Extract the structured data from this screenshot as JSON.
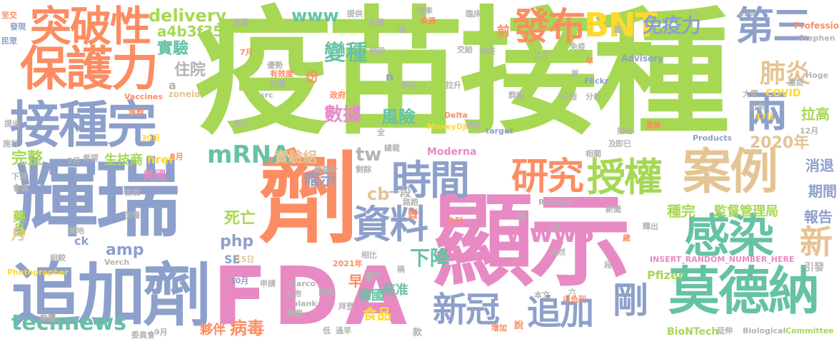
{
  "palette": {
    "green": "#a6d854",
    "blue": "#8da0cb",
    "orange": "#fc8d62",
    "pink": "#e78ac3",
    "teal": "#66c2a5",
    "yellow": "#ffd92f",
    "tan": "#e5c494",
    "gray": "#b3b3b3"
  },
  "words": {
    "w1": "疫苗接種",
    "w2": "輝瑞",
    "w3": "劑",
    "w4": "顯示",
    "w5": "FDA",
    "w6": "追加劑",
    "w7": "保護力",
    "w8": "突破性",
    "w9": "接種完",
    "w10": "感染",
    "w11": "莫德納",
    "w12": "案例",
    "w13": "授權",
    "w14": "研究",
    "w15": "時間",
    "w16": "資料",
    "w17": "發布",
    "w18": "BNT",
    "w19": "第三",
    "w20": "兩",
    "w21": "追加",
    "w22": "剛",
    "w23": "新冠",
    "w24": "www5",
    "w25": "mRNA",
    "w26": "technews",
    "w27": "www",
    "w28": "delivery",
    "w29": "a4b3f35b",
    "w30": "免疫力",
    "w31": "肺炎",
    "w32": "新",
    "w33": "變種",
    "w34": "實驗",
    "w35": "住院",
    "w36": "數據",
    "w37": "風險",
    "w38": "tw",
    "w39": "實驗組",
    "w40": "暗示",
    "w41": "下降",
    "w42": "cb",
    "w43": "2020年",
    "w44": "完整",
    "w45": "生技商",
    "w46": "php",
    "w47": "amp",
    "w48": "死亡",
    "w49": "病毒",
    "w50": "核准",
    "w51": "藥品",
    "w52": "月",
    "w53": "SE",
    "w54": "ck",
    "w55": "美國",
    "w56": "href",
    "w57": "消退",
    "w58": "期間",
    "w59": "報告",
    "w60": "拉高",
    "w61": "種完",
    "w62": "監督管理局",
    "w63": "Pfizer",
    "w64": "BioNTech",
    "w65": "Moderna",
    "w66": "早",
    "w67": "食品",
    "w68": "德國",
    "w69": "夥伴",
    "w70": "份",
    "w71": "前",
    "w72": "COVID",
    "w73": "一段",
    "w74": "皆",
    "w75": "zoneid",
    "w76": "Professional",
    "w77": "Stephen",
    "w78": "Hoge",
    "w79": "Advisory",
    "w80": "Vaccines",
    "w81": "INSERT_RANDOM_NUMBER_HERE",
    "w82": "引發",
    "w83": "Committee",
    "w84": "Biological",
    "w85": "Products",
    "w86": "Related",
    "w87": "Photographer",
    "w88": "Verch",
    "w89": "Marco",
    "w90": "MoneyDJ",
    "w91": "Flickr",
    "w92": "target",
    "w93": "Delta",
    "w94": "_blank",
    "w95": "img",
    "w96": "src",
    "w97": "cc",
    "w98": "avw",
    "w99": "8月",
    "w100": "7月",
    "w101": "9月",
    "w102": "3月",
    "w103": "10月",
    "w104": "12月",
    "w105": "30日",
    "w106": "15日",
    "w107": "17日",
    "w108": "1日",
    "w109": "2021年",
    "w110": "款",
    "w111": "提供",
    "w112": "完畢",
    "w113": "頻率",
    "w114": "來源",
    "w115": "臨床",
    "w116": "族群",
    "w117": "民眾",
    "w118": "發現",
    "w119": "普羅",
    "w120": "優勢",
    "w121": "有效度",
    "w122": "依舊",
    "w123": "政府",
    "w124": "製品",
    "w125": "拉升",
    "w126": "群組",
    "w127": "日程",
    "w128": "分析",
    "w129": "近期",
    "w130": "指出",
    "w131": "蒐集",
    "w132": "即已",
    "w133": "相關",
    "w134": "總裁",
    "w135": "剩餘",
    "w136": "刺胳針",
    "w137": "希望",
    "w138": "會議",
    "w139": "檢視",
    "w140": "加種",
    "w141": "相較",
    "w142": "相比",
    "w143": "生物",
    "w144": "轉載",
    "w145": "申請",
    "w146": "閱讀",
    "w147": "拜登",
    "w148": "增加",
    "w149": "說",
    "w150": "延伸",
    "w151": "委員會",
    "w152": "過早",
    "w153": "低",
    "w154": "本文",
    "w155": "以色列",
    "w156": "自然",
    "w157": "釋出",
    "w158": "新聞",
    "w159": "實地",
    "w160": "無關",
    "w161": "路跑",
    "w162": "下週",
    "w163": "施打",
    "w164": "提出",
    "w165": "大眾",
    "w166": "重症",
    "w167": "年",
    "w168": "首",
    "w169": "之下",
    "w170": "免疫",
    "w171": "階段",
    "w172": "交給",
    "w173": "染疫",
    "w174": "誘發",
    "w175": "較少",
    "w176": "全",
    "w177": "n",
    "w178": "a",
    "w179": "色列",
    "w180": "快",
    "w181": "歲",
    "w182": "六",
    "w183": "稱",
    "w184": "圖",
    "w185": "段",
    "w186": "及",
    "w187": "至交",
    "w188": "接",
    "w189": "鎖"
  }
}
